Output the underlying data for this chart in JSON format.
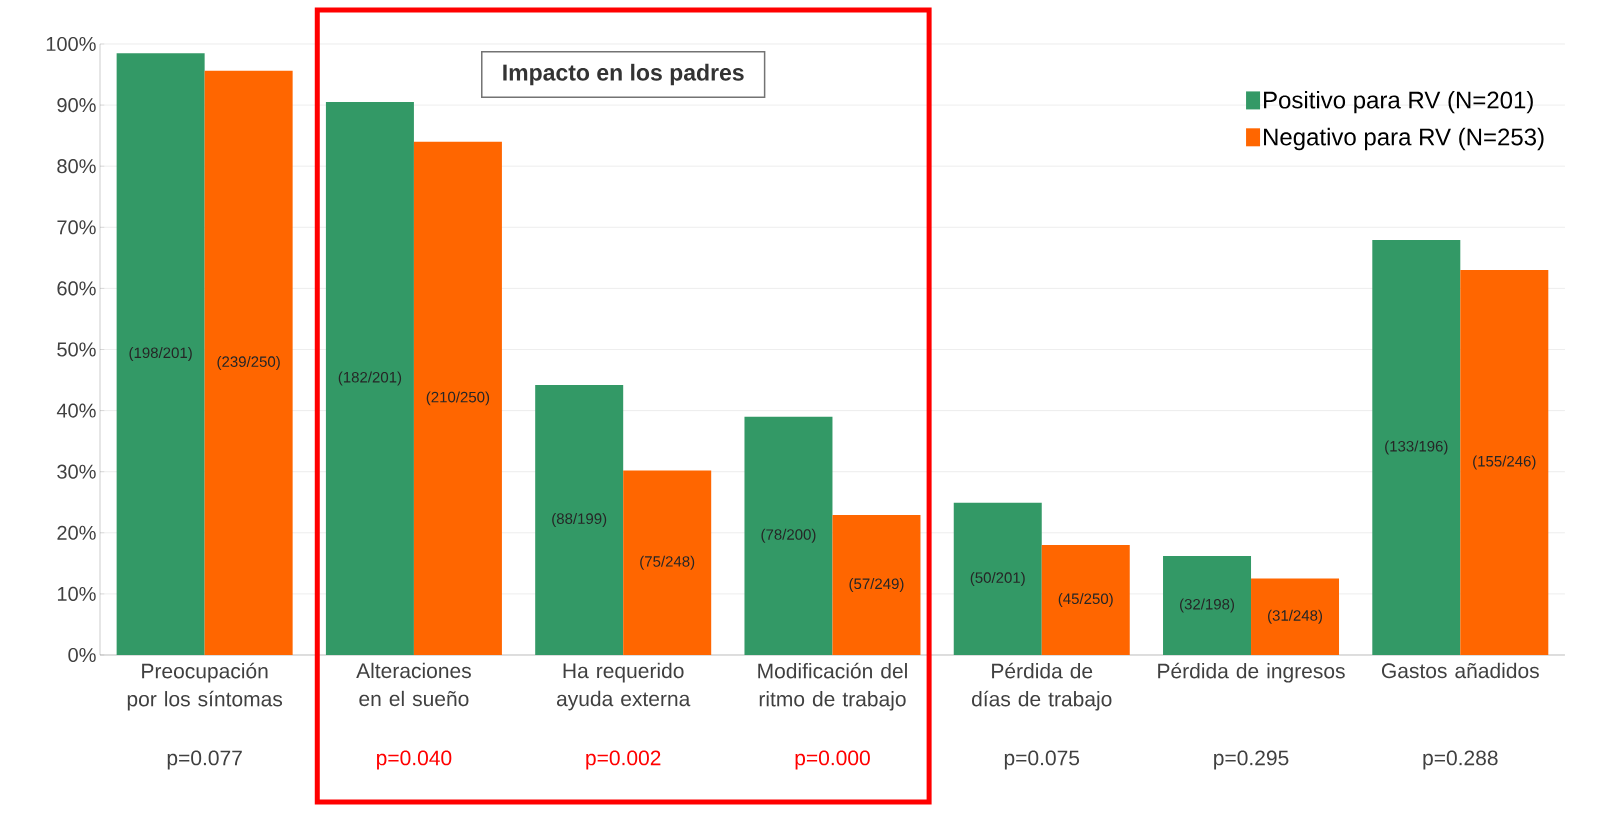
{
  "chart_data": {
    "type": "bar",
    "categories": [
      "Preocupación por los síntomas",
      "Alteraciones en el sueño",
      "Ha requerido ayuda externa",
      "Modificación del ritmo de trabajo",
      "Pérdida de días de trabajo",
      "Pérdida de ingresos",
      "Gastos añadidos"
    ],
    "series": [
      {
        "name": "Positivo para RV (N=201)",
        "color": "#339966",
        "values": [
          98.5,
          90.5,
          44.2,
          39.0,
          24.9,
          16.2,
          67.9
        ],
        "value_labels": [
          "(198/201)",
          "(182/201)",
          "(88/199)",
          "(78/200)",
          "(50/201)",
          "(32/198)",
          "(133/196)"
        ]
      },
      {
        "name": "Negativo para RV (N=253)",
        "color": "#ff6600",
        "values": [
          95.6,
          84.0,
          30.2,
          22.9,
          18.0,
          12.5,
          63.0
        ],
        "value_labels": [
          "(239/250)",
          "(210/250)",
          "(75/248)",
          "(57/249)",
          "(45/250)",
          "(31/248)",
          "(155/246)"
        ]
      }
    ],
    "ylim": [
      0,
      100
    ],
    "yticks": [
      {
        "value": 0,
        "label": "0%"
      },
      {
        "value": 10,
        "label": "10%"
      },
      {
        "value": 20,
        "label": "20%"
      },
      {
        "value": 30,
        "label": "30%"
      },
      {
        "value": 40,
        "label": "40%"
      },
      {
        "value": 50,
        "label": "50%"
      },
      {
        "value": 60,
        "label": "60%"
      },
      {
        "value": 70,
        "label": "70%"
      },
      {
        "value": 80,
        "label": "80%"
      },
      {
        "value": 90,
        "label": "90%"
      },
      {
        "value": 100,
        "label": "100%"
      }
    ],
    "grid": "y",
    "legend": "top right",
    "annotations": [
      "p=0.077",
      "p=0.040",
      "p=0.002",
      "p=0.000",
      "p=0.075",
      "p=0.295",
      "p=0.288",
      "Impacto en los padres"
    ]
  }
}
